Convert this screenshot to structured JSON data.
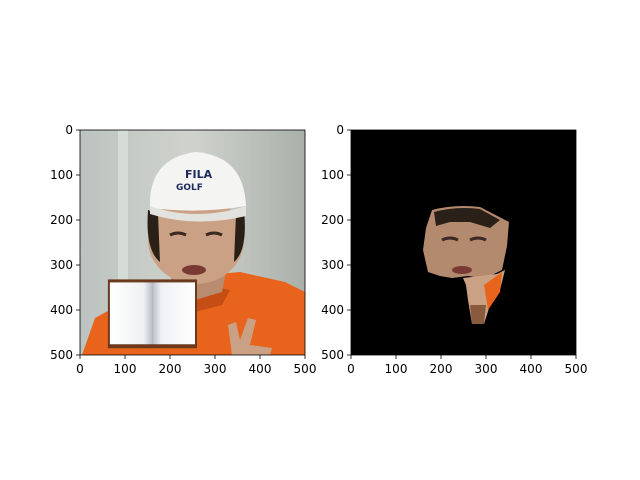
{
  "chart_data": [
    {
      "type": "image",
      "content": "photo of a person wearing a white cap and orange shirt; an open-book graphic is pasted over the lower-left region",
      "cap_text": [
        "FILA",
        "GOLF"
      ],
      "xlim": [
        0,
        500
      ],
      "ylim": [
        500,
        0
      ],
      "xticks": [
        0,
        100,
        200,
        300,
        400,
        500
      ],
      "yticks": [
        0,
        100,
        200,
        300,
        400,
        500
      ],
      "xtick_labels": [
        "0",
        "100",
        "200",
        "300",
        "400",
        "500"
      ],
      "ytick_labels": [
        "0",
        "100",
        "200",
        "300",
        "400",
        "500"
      ],
      "overlay_box": {
        "x0": 62,
        "x1": 260,
        "y0": 332,
        "y1": 485
      }
    },
    {
      "type": "image",
      "content": "segmentation mask: face and neck region kept, background black",
      "xlim": [
        0,
        500
      ],
      "ylim": [
        500,
        0
      ],
      "xticks": [
        0,
        100,
        200,
        300,
        400,
        500
      ],
      "yticks": [
        0,
        100,
        200,
        300,
        400,
        500
      ],
      "xtick_labels": [
        "0",
        "100",
        "200",
        "300",
        "400",
        "500"
      ],
      "ytick_labels": [
        "0",
        "100",
        "200",
        "300",
        "400",
        "500"
      ],
      "mask_color": "#000000"
    }
  ],
  "colors": {
    "background": "#c8ccc4",
    "cap": "#f4f4f2",
    "skin": "#caa184",
    "shirt": "#e8641c",
    "mask_background": "#000000",
    "book_border": "#6b3a1e"
  }
}
